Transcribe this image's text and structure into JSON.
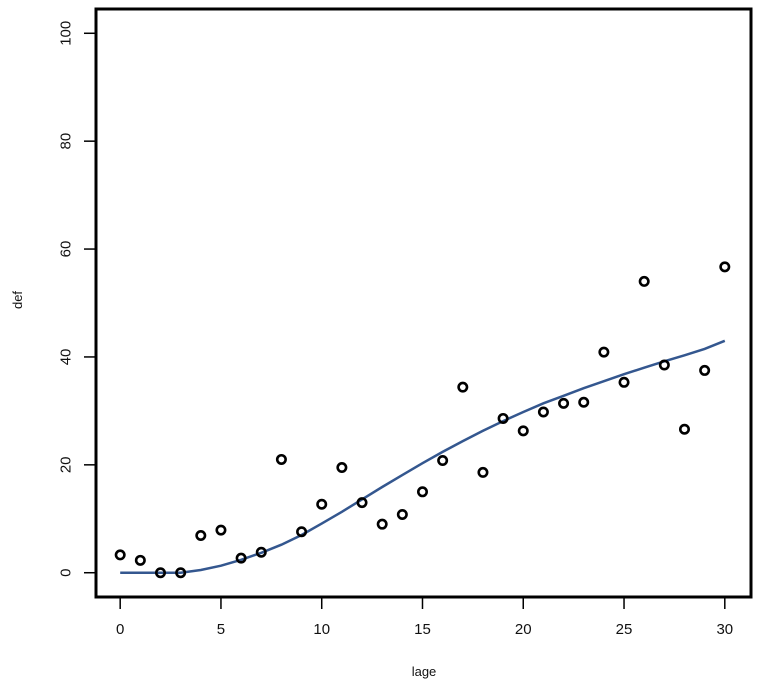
{
  "chart_data": {
    "type": "scatter",
    "xlabel": "lage",
    "ylabel": "def",
    "xlim": [
      -1.2,
      31.3
    ],
    "ylim": [
      -4.5,
      104.5
    ],
    "x_ticks": [
      0,
      5,
      10,
      15,
      20,
      25,
      30
    ],
    "y_ticks": [
      0,
      20,
      40,
      60,
      80,
      100
    ],
    "x_tick_labels": [
      "0",
      "5",
      "10",
      "15",
      "20",
      "25",
      "30"
    ],
    "y_tick_labels": [
      "0",
      "20",
      "40",
      "60",
      "80",
      "100"
    ],
    "grid": false,
    "legend": "none",
    "series": [
      {
        "type": "scatter",
        "marker": "open-circle",
        "color": "#000000",
        "x": [
          0,
          1,
          2,
          3,
          4,
          5,
          6,
          7,
          8,
          9,
          10,
          11,
          12,
          13,
          14,
          15,
          16,
          17,
          18,
          19,
          20,
          21,
          22,
          23,
          24,
          25,
          26,
          27,
          28,
          29,
          30
        ],
        "y": [
          3.3,
          2.3,
          0,
          0,
          6.9,
          7.9,
          2.7,
          3.8,
          21.0,
          7.6,
          12.7,
          19.5,
          13.0,
          9.0,
          10.8,
          15.0,
          20.8,
          34.4,
          18.6,
          28.6,
          26.3,
          29.8,
          31.4,
          31.6,
          40.9,
          35.3,
          54.0,
          38.5,
          26.6,
          37.5,
          56.7
        ]
      },
      {
        "type": "line",
        "color": "#34578f",
        "x": [
          0,
          1,
          2,
          3,
          4,
          5,
          6,
          7,
          8,
          9,
          10,
          11,
          12,
          13,
          14,
          15,
          16,
          17,
          18,
          19,
          20,
          21,
          22,
          23,
          24,
          25,
          26,
          27,
          28,
          29,
          30
        ],
        "y": [
          0,
          0,
          0,
          0,
          0.5,
          1.3,
          2.4,
          3.7,
          5.2,
          7.0,
          9.1,
          11.3,
          13.6,
          15.9,
          18.1,
          20.3,
          22.4,
          24.4,
          26.3,
          28.1,
          29.8,
          31.4,
          32.8,
          34.2,
          35.5,
          36.8,
          38.0,
          39.2,
          40.3,
          41.5,
          43.0
        ]
      }
    ]
  }
}
